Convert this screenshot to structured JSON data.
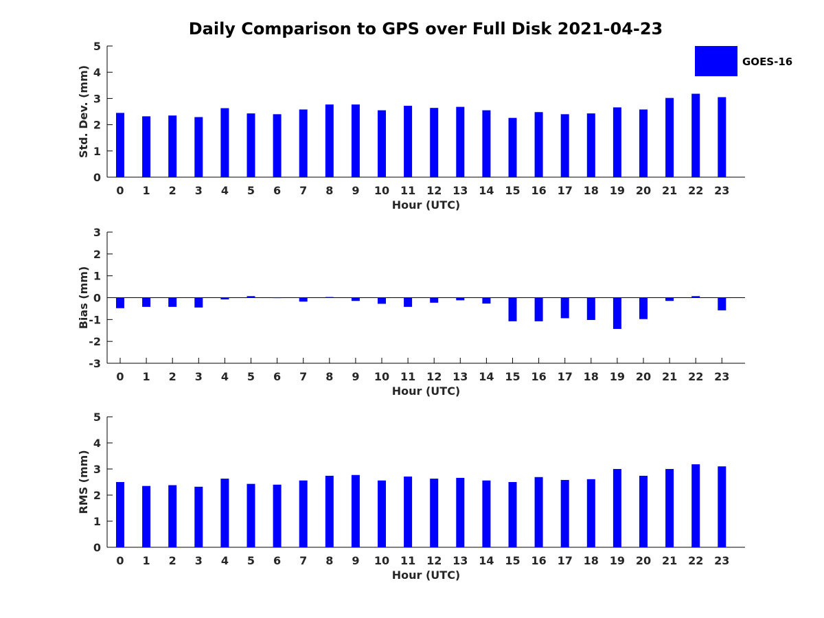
{
  "figure": {
    "title": "Daily Comparison to GPS over Full Disk 2021-04-23"
  },
  "legend": {
    "label": "GOES-16",
    "color": "#0000ff",
    "placement": "top-right"
  },
  "chart_data": [
    {
      "type": "bar",
      "title": "Daily Comparison to GPS over Full Disk 2021-04-23",
      "xlabel": "Hour (UTC)",
      "ylabel": "Std. Dev. (mm)",
      "categories": [
        "0",
        "1",
        "2",
        "3",
        "4",
        "5",
        "6",
        "7",
        "8",
        "9",
        "10",
        "11",
        "12",
        "13",
        "14",
        "15",
        "16",
        "17",
        "18",
        "19",
        "20",
        "21",
        "22",
        "23"
      ],
      "series": [
        {
          "name": "GOES-16",
          "color": "#0000ff",
          "values": [
            2.45,
            2.32,
            2.35,
            2.29,
            2.63,
            2.43,
            2.4,
            2.58,
            2.77,
            2.77,
            2.55,
            2.72,
            2.64,
            2.68,
            2.55,
            2.26,
            2.48,
            2.4,
            2.43,
            2.66,
            2.58,
            3.02,
            3.18,
            3.05
          ]
        }
      ],
      "ylim": [
        0,
        5
      ],
      "yticks": [
        0,
        1,
        2,
        3,
        4,
        5
      ],
      "grid": false
    },
    {
      "type": "bar",
      "xlabel": "Hour (UTC)",
      "ylabel": "Bias (mm)",
      "categories": [
        "0",
        "1",
        "2",
        "3",
        "4",
        "5",
        "6",
        "7",
        "8",
        "9",
        "10",
        "11",
        "12",
        "13",
        "14",
        "15",
        "16",
        "17",
        "18",
        "19",
        "20",
        "21",
        "22",
        "23"
      ],
      "series": [
        {
          "name": "GOES-16",
          "color": "#0000ff",
          "values": [
            -0.48,
            -0.42,
            -0.42,
            -0.45,
            -0.08,
            0.07,
            -0.02,
            -0.18,
            0.03,
            -0.15,
            -0.28,
            -0.42,
            -0.23,
            -0.12,
            -0.27,
            -1.08,
            -1.08,
            -0.94,
            -1.02,
            -1.43,
            -0.98,
            -0.15,
            0.07,
            -0.58
          ]
        }
      ],
      "ylim": [
        -3,
        3
      ],
      "yticks": [
        -3,
        -2,
        -1,
        0,
        1,
        2,
        3
      ],
      "zero_line": true,
      "grid": false
    },
    {
      "type": "bar",
      "xlabel": "Hour (UTC)",
      "ylabel": "RMS (mm)",
      "categories": [
        "0",
        "1",
        "2",
        "3",
        "4",
        "5",
        "6",
        "7",
        "8",
        "9",
        "10",
        "11",
        "12",
        "13",
        "14",
        "15",
        "16",
        "17",
        "18",
        "19",
        "20",
        "21",
        "22",
        "23"
      ],
      "series": [
        {
          "name": "GOES-16",
          "color": "#0000ff",
          "values": [
            2.5,
            2.35,
            2.38,
            2.32,
            2.63,
            2.43,
            2.4,
            2.56,
            2.74,
            2.77,
            2.56,
            2.71,
            2.63,
            2.66,
            2.56,
            2.5,
            2.69,
            2.58,
            2.61,
            3.0,
            2.74,
            3.0,
            3.18,
            3.1
          ]
        }
      ],
      "ylim": [
        0,
        5
      ],
      "yticks": [
        0,
        1,
        2,
        3,
        4,
        5
      ],
      "grid": false
    }
  ]
}
